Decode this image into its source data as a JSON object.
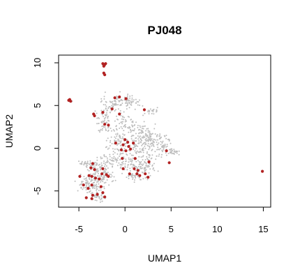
{
  "chart_data": {
    "type": "scatter",
    "title": "PJ048",
    "xlabel": "UMAP1",
    "ylabel": "UMAP2",
    "xlim": [
      -7.2,
      15.8
    ],
    "ylim": [
      -6.9,
      10.9
    ],
    "xticks": [
      -5,
      0,
      5,
      10,
      15
    ],
    "yticks": [
      -5,
      0,
      5,
      10
    ],
    "grid": false,
    "legend": "none",
    "colors": {
      "background_cells": "#bdbdbd",
      "highlighted_cells": "#b22222"
    },
    "series": [
      {
        "role": "background",
        "color": "#bdbdbd",
        "points": [
          [
            -2.4,
            9.8
          ],
          [
            -2.2,
            9.7
          ],
          [
            -2.3,
            8.7
          ],
          [
            -6.0,
            5.6
          ],
          [
            -5.8,
            5.5
          ]
        ]
      },
      {
        "role": "highlighted",
        "color": "#b22222",
        "points": [
          [
            -2.4,
            9.9
          ],
          [
            -2.2,
            9.8
          ],
          [
            -2.3,
            9.6
          ],
          [
            -2.1,
            9.9
          ],
          [
            -2.3,
            8.8
          ],
          [
            -2.2,
            8.6
          ],
          [
            -6.1,
            5.6
          ],
          [
            -5.9,
            5.5
          ],
          [
            -6.0,
            5.7
          ],
          [
            -3.4,
            4.0
          ],
          [
            -3.3,
            3.8
          ],
          [
            -2.4,
            4.2
          ],
          [
            -2.2,
            2.8
          ],
          [
            -1.8,
            2.7
          ],
          [
            -1.4,
            4.6
          ],
          [
            -1.1,
            5.9
          ],
          [
            -0.6,
            6.0
          ],
          [
            0.1,
            5.8
          ],
          [
            -0.6,
            4.0
          ],
          [
            2.1,
            4.5
          ],
          [
            0.0,
            1.0
          ],
          [
            0.3,
            0.7
          ],
          [
            -0.2,
            0.4
          ],
          [
            0.4,
            0.2
          ],
          [
            -0.4,
            -0.2
          ],
          [
            0.1,
            -0.3
          ],
          [
            -1.0,
            0.6
          ],
          [
            0.9,
            0.6
          ],
          [
            0.6,
            -0.1
          ],
          [
            -0.3,
            -1.2
          ],
          [
            1.1,
            -1.2
          ],
          [
            2.6,
            -1.6
          ],
          [
            4.5,
            -0.3
          ],
          [
            4.8,
            -1.7
          ],
          [
            1.0,
            -2.4
          ],
          [
            1.4,
            -2.6
          ],
          [
            0.5,
            -3.0
          ],
          [
            1.3,
            -3.0
          ],
          [
            1.6,
            -3.2
          ],
          [
            2.2,
            -3.0
          ],
          [
            2.5,
            -3.4
          ],
          [
            -0.2,
            -2.4
          ],
          [
            -2.4,
            -2.4
          ],
          [
            -2.0,
            -3.1
          ],
          [
            -3.5,
            -1.8
          ],
          [
            -3.7,
            -2.3
          ],
          [
            -3.3,
            -2.5
          ],
          [
            -2.5,
            -3.0
          ],
          [
            -1.8,
            -3.3
          ],
          [
            -3.6,
            -3.3
          ],
          [
            -3.2,
            -3.5
          ],
          [
            -4.5,
            -4.3
          ],
          [
            -4.0,
            -4.7
          ],
          [
            -3.6,
            -4.3
          ],
          [
            -2.6,
            -4.5
          ],
          [
            -2.4,
            -5.2
          ],
          [
            -3.0,
            -5.4
          ],
          [
            -3.5,
            -5.5
          ],
          [
            -4.2,
            -5.8
          ],
          [
            -3.6,
            -5.9
          ],
          [
            -2.2,
            -5.7
          ],
          [
            -2.8,
            -3.6
          ],
          [
            -3.9,
            -3.2
          ],
          [
            -4.9,
            -3.3
          ],
          [
            14.9,
            -2.7
          ]
        ]
      }
    ]
  }
}
